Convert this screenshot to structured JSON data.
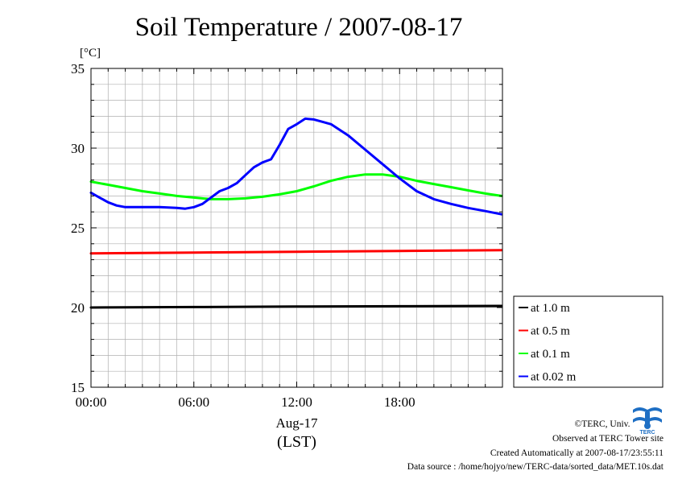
{
  "title": "Soil Temperature / 2007-08-17",
  "chart_data": {
    "type": "line",
    "title": "Soil Temperature / 2007-08-17",
    "ylabel": "[°C]",
    "xlabel": "(LST)",
    "x_date_label": "Aug-17",
    "ylim": [
      15,
      35
    ],
    "xlim": [
      0,
      24
    ],
    "y_ticks": [
      "15",
      "20",
      "25",
      "30",
      "35"
    ],
    "x_ticks": [
      {
        "value": 0,
        "label": "00:00"
      },
      {
        "value": 6,
        "label": "06:00"
      },
      {
        "value": 12,
        "label": "12:00"
      },
      {
        "value": 18,
        "label": "18:00"
      }
    ],
    "grid": true,
    "legend_position": "outside-right-bottom",
    "series": [
      {
        "name": "at 1.0 m",
        "color": "#000000",
        "x": [
          0,
          6,
          12,
          18,
          23.95
        ],
        "y": [
          20.0,
          20.03,
          20.06,
          20.08,
          20.1
        ]
      },
      {
        "name": "at 0.5 m",
        "color": "#ff0000",
        "x": [
          0,
          6,
          12,
          18,
          23.95
        ],
        "y": [
          23.4,
          23.45,
          23.5,
          23.55,
          23.6
        ]
      },
      {
        "name": "at 0.1 m",
        "color": "#00ff00",
        "x": [
          0,
          1,
          2,
          3,
          4,
          5,
          6,
          7,
          8,
          9,
          10,
          11,
          12,
          13,
          14,
          15,
          16,
          17,
          18,
          19,
          20,
          21,
          22,
          23,
          23.95
        ],
        "y": [
          27.9,
          27.7,
          27.5,
          27.3,
          27.15,
          27.0,
          26.9,
          26.8,
          26.8,
          26.85,
          26.95,
          27.1,
          27.3,
          27.6,
          27.95,
          28.2,
          28.35,
          28.35,
          28.2,
          27.95,
          27.75,
          27.55,
          27.35,
          27.15,
          27.0
        ]
      },
      {
        "name": "at 0.02 m",
        "color": "#0000ff",
        "x": [
          0,
          0.5,
          1,
          1.5,
          2,
          3,
          4,
          5,
          5.5,
          6,
          6.5,
          7,
          7.5,
          8,
          8.5,
          9,
          9.5,
          10,
          10.5,
          11,
          11.5,
          12,
          12.5,
          13,
          13.5,
          14,
          15,
          16,
          17,
          18,
          19,
          20,
          21,
          22,
          23,
          23.95
        ],
        "y": [
          27.2,
          26.9,
          26.6,
          26.4,
          26.3,
          26.3,
          26.3,
          26.25,
          26.2,
          26.3,
          26.5,
          26.9,
          27.3,
          27.5,
          27.8,
          28.3,
          28.8,
          29.1,
          29.3,
          30.2,
          31.2,
          31.5,
          31.85,
          31.8,
          31.65,
          31.5,
          30.8,
          29.9,
          29.0,
          28.1,
          27.3,
          26.8,
          26.5,
          26.25,
          26.05,
          25.85
        ]
      }
    ]
  },
  "footer": {
    "copyright": "©TERC, Univ. Tsukuba",
    "site": "Observed at TERC Tower site",
    "created": "Created Automatically at 2007-08-17/23:55:11",
    "source": "Data source : /home/hojyo/new/TERC-data/sorted_data/MET.10s.dat"
  },
  "logo": {
    "text": "TERC",
    "color": "#1e6fc4"
  }
}
